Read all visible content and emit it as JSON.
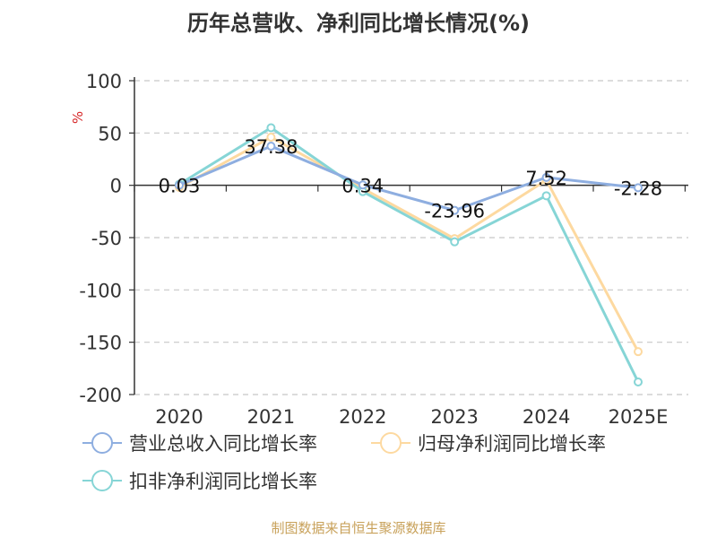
{
  "title": "历年总营收、净利同比增长情况(%)",
  "source": "制图数据来自恒生聚源数据库",
  "chart_data": {
    "type": "line",
    "title": "历年总营收、净利同比增长情况(%)",
    "ylabel": "%",
    "xlabel": "",
    "categories": [
      "2020",
      "2021",
      "2022",
      "2023",
      "2024",
      "2025E"
    ],
    "ylim": [
      -200,
      100
    ],
    "yticks": [
      100,
      50,
      0,
      -50,
      -100,
      -150,
      -200
    ],
    "grid": true,
    "legend_position": "bottom",
    "series": [
      {
        "name": "营业总收入同比增长率",
        "color": "#8eaee0",
        "values": [
          0.03,
          37.38,
          0.34,
          -23.96,
          7.52,
          -2.28
        ],
        "labels": [
          "0.03",
          "37.38",
          "0.34",
          "-23.96",
          "7.52",
          "-2.28"
        ]
      },
      {
        "name": "归母净利润同比增长率",
        "color": "#fdd9a0",
        "values": [
          -2,
          46,
          -3,
          -51,
          5,
          -159
        ]
      },
      {
        "name": "扣非净利润同比增长率",
        "color": "#86d5d6",
        "values": [
          1,
          55,
          -6,
          -54,
          -10,
          -188
        ]
      }
    ]
  }
}
